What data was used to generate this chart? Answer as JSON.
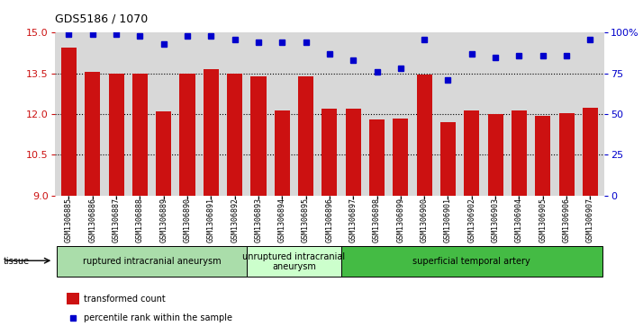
{
  "title": "GDS5186 / 1070",
  "samples": [
    "GSM1306885",
    "GSM1306886",
    "GSM1306887",
    "GSM1306888",
    "GSM1306889",
    "GSM1306890",
    "GSM1306891",
    "GSM1306892",
    "GSM1306893",
    "GSM1306894",
    "GSM1306895",
    "GSM1306896",
    "GSM1306897",
    "GSM1306898",
    "GSM1306899",
    "GSM1306900",
    "GSM1306901",
    "GSM1306902",
    "GSM1306903",
    "GSM1306904",
    "GSM1306905",
    "GSM1306906",
    "GSM1306907"
  ],
  "bar_values": [
    14.45,
    13.55,
    13.48,
    13.48,
    12.1,
    13.48,
    13.65,
    13.48,
    13.4,
    12.15,
    13.4,
    12.2,
    12.2,
    11.8,
    11.82,
    13.45,
    11.7,
    12.15,
    12.0,
    12.15,
    11.95,
    12.02,
    12.22
  ],
  "dot_values": [
    99,
    99,
    99,
    98,
    93,
    98,
    98,
    96,
    94,
    94,
    94,
    87,
    83,
    76,
    78,
    96,
    71,
    87,
    85,
    86,
    86,
    86,
    96
  ],
  "ylim_left": [
    9,
    15
  ],
  "ylim_right": [
    0,
    100
  ],
  "yticks_left": [
    9,
    10.5,
    12,
    13.5,
    15
  ],
  "yticks_right": [
    0,
    25,
    50,
    75,
    100
  ],
  "bar_color": "#cc1111",
  "dot_color": "#0000cc",
  "plot_bg_color": "#d8d8d8",
  "tick_bg_color": "#cccccc",
  "groups": [
    {
      "label": "ruptured intracranial aneurysm",
      "start": 0,
      "end": 8,
      "color": "#aaddaa"
    },
    {
      "label": "unruptured intracranial\naneurysm",
      "start": 8,
      "end": 12,
      "color": "#ccffcc"
    },
    {
      "label": "superficial temporal artery",
      "start": 12,
      "end": 23,
      "color": "#44bb44"
    }
  ],
  "legend_bar_label": "transformed count",
  "legend_dot_label": "percentile rank within the sample",
  "tissue_label": "tissue",
  "right_axis_color": "#0000cc",
  "left_axis_color": "#cc1111",
  "gridlines_at": [
    13.5,
    12.0,
    10.5
  ]
}
